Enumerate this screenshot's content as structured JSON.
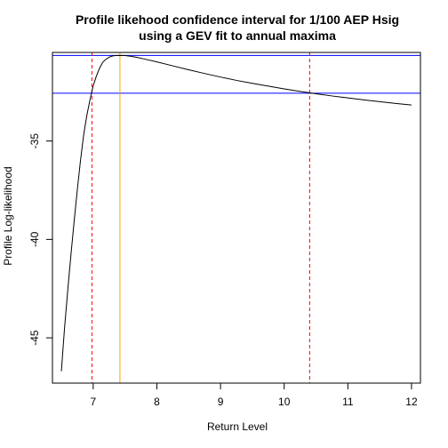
{
  "chart_data": {
    "type": "line",
    "title_lines": [
      "Profile likehood confidence interval for 1/100 AEP Hsig",
      "using a GEV fit to annual maxima"
    ],
    "xlabel": "Return Level",
    "ylabel": "Profile Log-likelihood",
    "xlim": [
      6.36,
      12.14
    ],
    "ylim": [
      -47.3,
      -30.5
    ],
    "x_ticks": [
      7,
      8,
      9,
      10,
      11,
      12
    ],
    "y_ticks": [
      -35,
      -40,
      -45
    ],
    "grid": false,
    "series": [
      {
        "color": "#000000",
        "x": [
          6.5,
          6.55,
          6.6,
          6.65,
          6.7,
          6.75,
          6.8,
          6.85,
          6.9,
          6.95,
          7.0,
          7.05,
          7.1,
          7.15,
          7.2,
          7.25,
          7.3,
          7.35,
          7.4,
          7.5,
          7.6,
          7.7,
          7.8,
          8.0,
          8.25,
          8.5,
          8.75,
          9.0,
          9.25,
          9.5,
          9.75,
          10.0,
          10.25,
          10.4,
          10.5,
          10.75,
          11.0,
          11.25,
          11.5,
          11.75,
          12.0
        ],
        "y": [
          -46.7,
          -44.5,
          -42.6,
          -40.8,
          -39.1,
          -37.5,
          -36.0,
          -34.7,
          -33.7,
          -32.9,
          -32.2,
          -31.7,
          -31.3,
          -31.0,
          -30.85,
          -30.74,
          -30.68,
          -30.66,
          -30.65,
          -30.66,
          -30.7,
          -30.76,
          -30.83,
          -30.98,
          -31.18,
          -31.38,
          -31.57,
          -31.75,
          -31.92,
          -32.07,
          -32.21,
          -32.35,
          -32.48,
          -32.55,
          -32.6,
          -32.71,
          -32.81,
          -32.91,
          -33.0,
          -33.09,
          -33.17
        ]
      }
    ],
    "hlines": [
      {
        "y": -30.65,
        "color": "#0000ff"
      },
      {
        "y": -32.57,
        "color": "#0000ff"
      }
    ],
    "vlines": [
      {
        "x": 6.98,
        "color": "#ff0000",
        "style": "dashed"
      },
      {
        "x": 7.42,
        "color": "#ffa500",
        "style": "solid"
      },
      {
        "x": 10.4,
        "color": "#ff0000",
        "style": "dashed"
      }
    ]
  }
}
